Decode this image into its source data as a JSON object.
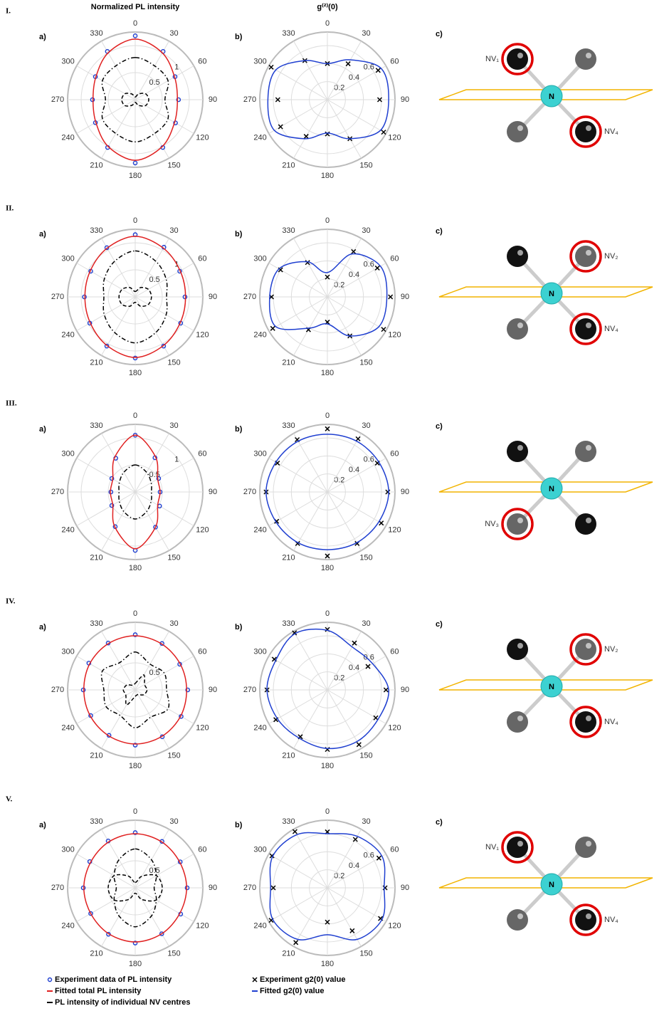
{
  "headers": [
    "Normalized PL intensity",
    "g⁽²⁾(0)"
  ],
  "rows": [
    {
      "numeral": "I.",
      "diagram": {
        "panel_label": "c)",
        "center_label": "N",
        "highlighted": [
          {
            "label": "NV₁",
            "site": "upper-left"
          },
          {
            "label": "NV₄",
            "site": "lower-right"
          }
        ]
      }
    },
    {
      "numeral": "II.",
      "diagram": {
        "panel_label": "c)",
        "center_label": "N",
        "highlighted": [
          {
            "label": "NV₂",
            "site": "upper-right"
          },
          {
            "label": "NV₄",
            "site": "lower-right"
          }
        ]
      }
    },
    {
      "numeral": "III.",
      "diagram": {
        "panel_label": "c)",
        "center_label": "N",
        "highlighted": [
          {
            "label": "NV₃",
            "site": "lower-left"
          }
        ]
      }
    },
    {
      "numeral": "IV.",
      "diagram": {
        "panel_label": "c)",
        "center_label": "N",
        "highlighted": [
          {
            "label": "NV₂",
            "site": "upper-right"
          },
          {
            "label": "NV₄",
            "site": "lower-right"
          }
        ]
      }
    },
    {
      "numeral": "V.",
      "diagram": {
        "panel_label": "c)",
        "center_label": "N",
        "highlighted": [
          {
            "label": "NV₁",
            "site": "upper-left"
          },
          {
            "label": "NV₄",
            "site": "lower-right"
          }
        ]
      }
    }
  ],
  "legends": {
    "a": [
      {
        "label": "Experiment data of PL intensity",
        "symbol": "circle",
        "color": "#1f3fd0"
      },
      {
        "label": "Fitted total PL intensity",
        "symbol": "line",
        "color": "#e02020"
      },
      {
        "label": "PL intensity of individual NV centres",
        "symbol": "line",
        "color": "#000000"
      }
    ],
    "b": [
      {
        "label": "Experiment g2(0) value",
        "symbol": "cross",
        "color": "#000000"
      },
      {
        "label": "Fitted g2(0) value",
        "symbol": "line",
        "color": "#1f3fd0"
      }
    ]
  },
  "chart_data": [
    {
      "type": "polar",
      "panel_label": "a)",
      "theta": [
        0,
        30,
        60,
        90,
        120,
        150,
        180,
        210,
        240,
        270,
        300,
        330
      ],
      "rlim": [
        0,
        1.25
      ],
      "rticks": [
        0.5,
        1
      ],
      "thetaticks": [
        0,
        30,
        60,
        90,
        120,
        150,
        180,
        210,
        240,
        270,
        300,
        330
      ],
      "series": [
        {
          "style": "markers",
          "color": "#1f3fd0",
          "values": [
            1.18,
            1.03,
            0.85,
            0.8,
            0.86,
            1.02,
            1.17,
            1.02,
            0.85,
            0.79,
            0.85,
            1.03
          ]
        },
        {
          "style": "solid",
          "color": "#e02020",
          "values": [
            1.12,
            1.0,
            0.84,
            0.78,
            0.84,
            1.0,
            1.12,
            1.0,
            0.84,
            0.78,
            0.84,
            1.0
          ]
        },
        {
          "style": "dashdot",
          "color": "#000000",
          "values": [
            0.78,
            0.72,
            0.7,
            0.55,
            0.7,
            0.72,
            0.78,
            0.72,
            0.7,
            0.55,
            0.7,
            0.72
          ]
        },
        {
          "style": "dashed",
          "color": "#000000",
          "values": [
            0.05,
            0.12,
            0.22,
            0.25,
            0.22,
            0.12,
            0.05,
            0.12,
            0.22,
            0.25,
            0.22,
            0.12
          ]
        }
      ]
    },
    {
      "type": "polar",
      "panel_label": "b)",
      "theta": [
        0,
        30,
        60,
        90,
        120,
        150,
        180,
        210,
        240,
        270,
        300,
        330
      ],
      "rlim": [
        0,
        0.75
      ],
      "rticks": [
        0.2,
        0.4,
        0.6
      ],
      "thetaticks": [
        0,
        30,
        60,
        90,
        120,
        150,
        180,
        210,
        240,
        270,
        300,
        330
      ],
      "series": [
        {
          "style": "crosses",
          "color": "#000000",
          "values": [
            0.4,
            0.46,
            0.65,
            0.58,
            0.72,
            0.5,
            0.38,
            0.47,
            0.6,
            0.55,
            0.72,
            0.5
          ]
        },
        {
          "style": "solid",
          "color": "#1f3fd0",
          "values": [
            0.4,
            0.51,
            0.69,
            0.68,
            0.68,
            0.5,
            0.37,
            0.5,
            0.68,
            0.66,
            0.66,
            0.5
          ]
        }
      ]
    },
    {
      "type": "polar",
      "panel_label": "a)",
      "theta": [
        0,
        30,
        60,
        90,
        120,
        150,
        180,
        210,
        240,
        270,
        300,
        330
      ],
      "rlim": [
        0,
        1.25
      ],
      "rticks": [
        0.5,
        1
      ],
      "thetaticks": [
        0,
        30,
        60,
        90,
        120,
        150,
        180,
        210,
        240,
        270,
        300,
        330
      ],
      "series": [
        {
          "style": "markers",
          "color": "#1f3fd0",
          "values": [
            1.15,
            1.06,
            0.95,
            0.92,
            0.97,
            1.05,
            1.13,
            1.05,
            0.97,
            0.94,
            0.95,
            1.05
          ]
        },
        {
          "style": "solid",
          "color": "#e02020",
          "values": [
            1.12,
            1.04,
            0.96,
            0.93,
            0.96,
            1.04,
            1.12,
            1.04,
            0.96,
            0.93,
            0.96,
            1.04
          ]
        },
        {
          "style": "dashdot",
          "color": "#000000",
          "values": [
            0.85,
            0.76,
            0.66,
            0.58,
            0.66,
            0.76,
            0.85,
            0.76,
            0.66,
            0.58,
            0.66,
            0.76
          ]
        },
        {
          "style": "dashed",
          "color": "#000000",
          "values": [
            0.1,
            0.2,
            0.28,
            0.3,
            0.28,
            0.2,
            0.1,
            0.2,
            0.28,
            0.3,
            0.28,
            0.2
          ]
        }
      ]
    },
    {
      "type": "polar",
      "panel_label": "b)",
      "theta": [
        0,
        30,
        60,
        90,
        120,
        150,
        180,
        210,
        240,
        270,
        300,
        330
      ],
      "rlim": [
        0,
        0.75
      ],
      "rticks": [
        0.2,
        0.4,
        0.6
      ],
      "thetaticks": [
        0,
        30,
        60,
        90,
        120,
        150,
        180,
        210,
        240,
        270,
        300,
        330
      ],
      "series": [
        {
          "style": "crosses",
          "color": "#000000",
          "values": [
            0.22,
            0.58,
            0.64,
            0.7,
            0.72,
            0.5,
            0.28,
            0.42,
            0.7,
            0.62,
            0.6,
            0.44
          ]
        },
        {
          "style": "solid",
          "color": "#1f3fd0",
          "values": [
            0.27,
            0.55,
            0.68,
            0.66,
            0.66,
            0.5,
            0.3,
            0.4,
            0.66,
            0.64,
            0.62,
            0.45
          ]
        }
      ]
    },
    {
      "type": "polar",
      "panel_label": "a)",
      "theta": [
        0,
        30,
        60,
        90,
        120,
        150,
        180,
        210,
        240,
        270,
        300,
        330
      ],
      "rlim": [
        0,
        1.25
      ],
      "rticks": [
        0.5,
        1
      ],
      "thetaticks": [
        0,
        30,
        60,
        90,
        120,
        150,
        180,
        210,
        240,
        270,
        300,
        330
      ],
      "series": [
        {
          "style": "markers",
          "color": "#1f3fd0",
          "values": [
            1.05,
            0.73,
            0.5,
            0.46,
            0.52,
            0.75,
            1.08,
            0.74,
            0.5,
            0.45,
            0.5,
            0.72
          ]
        },
        {
          "style": "solid",
          "color": "#e02020",
          "values": [
            1.05,
            0.75,
            0.48,
            0.46,
            0.48,
            0.75,
            1.05,
            0.75,
            0.48,
            0.46,
            0.48,
            0.75
          ]
        },
        {
          "style": "dashdot",
          "color": "#000000",
          "values": [
            0.5,
            0.42,
            0.34,
            0.3,
            0.34,
            0.42,
            0.5,
            0.42,
            0.34,
            0.3,
            0.34,
            0.42
          ]
        }
      ]
    },
    {
      "type": "polar",
      "panel_label": "b)",
      "theta": [
        0,
        30,
        60,
        90,
        120,
        150,
        180,
        210,
        240,
        270,
        300,
        330
      ],
      "rlim": [
        0,
        0.75
      ],
      "rticks": [
        0.2,
        0.4,
        0.6
      ],
      "thetaticks": [
        0,
        30,
        60,
        90,
        120,
        150,
        180,
        210,
        240,
        270,
        300,
        330
      ],
      "series": [
        {
          "style": "crosses",
          "color": "#000000",
          "values": [
            0.7,
            0.68,
            0.64,
            0.67,
            0.69,
            0.66,
            0.71,
            0.66,
            0.65,
            0.68,
            0.64,
            0.67
          ]
        },
        {
          "style": "solid",
          "color": "#1f3fd0",
          "values": [
            0.64,
            0.65,
            0.66,
            0.68,
            0.66,
            0.65,
            0.64,
            0.65,
            0.66,
            0.68,
            0.66,
            0.65
          ]
        }
      ]
    },
    {
      "type": "polar",
      "panel_label": "a)",
      "theta": [
        0,
        30,
        60,
        90,
        120,
        150,
        180,
        210,
        240,
        270,
        300,
        330
      ],
      "rlim": [
        0,
        1.25
      ],
      "rticks": [
        0.5
      ],
      "thetaticks": [
        0,
        30,
        60,
        90,
        120,
        150,
        180,
        210,
        240,
        270,
        300,
        330
      ],
      "series": [
        {
          "style": "markers",
          "color": "#1f3fd0",
          "values": [
            1.02,
            0.99,
            0.95,
            0.97,
            0.98,
            1.0,
            1.02,
            0.97,
            0.95,
            0.96,
            0.99,
            1.0
          ]
        },
        {
          "style": "solid",
          "color": "#e02020",
          "values": [
            1.0,
            0.98,
            0.96,
            0.95,
            0.97,
            0.99,
            1.0,
            0.98,
            0.96,
            0.95,
            0.97,
            0.99
          ]
        },
        {
          "style": "dashdot",
          "color": "#000000",
          "values": [
            0.7,
            0.55,
            0.62,
            0.58,
            0.7,
            0.58,
            0.7,
            0.55,
            0.62,
            0.58,
            0.7,
            0.58
          ]
        },
        {
          "style": "dashed",
          "color": "#000000",
          "values": [
            0.12,
            0.32,
            0.2,
            0.22,
            0.18,
            0.1,
            0.12,
            0.32,
            0.2,
            0.22,
            0.18,
            0.1
          ]
        }
      ]
    },
    {
      "type": "polar",
      "panel_label": "b)",
      "theta": [
        0,
        30,
        60,
        90,
        120,
        150,
        180,
        210,
        240,
        270,
        300,
        330
      ],
      "rlim": [
        0,
        0.75
      ],
      "rticks": [
        0.2,
        0.4,
        0.6
      ],
      "thetaticks": [
        0,
        30,
        60,
        90,
        120,
        150,
        180,
        210,
        240,
        270,
        300,
        330
      ],
      "series": [
        {
          "style": "crosses",
          "color": "#000000",
          "values": [
            0.67,
            0.6,
            0.52,
            0.65,
            0.62,
            0.7,
            0.66,
            0.6,
            0.66,
            0.67,
            0.68,
            0.73
          ]
        },
        {
          "style": "solid",
          "color": "#1f3fd0",
          "values": [
            0.66,
            0.55,
            0.58,
            0.68,
            0.65,
            0.66,
            0.65,
            0.62,
            0.64,
            0.67,
            0.66,
            0.72
          ]
        }
      ]
    },
    {
      "type": "polar",
      "panel_label": "a)",
      "theta": [
        0,
        30,
        60,
        90,
        120,
        150,
        180,
        210,
        240,
        270,
        300,
        330
      ],
      "rlim": [
        0,
        1.25
      ],
      "rticks": [
        0.5
      ],
      "thetaticks": [
        0,
        30,
        60,
        90,
        120,
        150,
        180,
        210,
        240,
        270,
        300,
        330
      ],
      "series": [
        {
          "style": "markers",
          "color": "#1f3fd0",
          "values": [
            1.02,
            0.99,
            0.96,
            0.96,
            0.97,
            0.98,
            1.02,
            0.99,
            0.95,
            0.96,
            0.97,
            1.0
          ]
        },
        {
          "style": "solid",
          "color": "#e02020",
          "values": [
            1.0,
            0.98,
            0.95,
            0.95,
            0.95,
            0.98,
            1.0,
            0.98,
            0.95,
            0.95,
            0.95,
            0.98
          ]
        },
        {
          "style": "dashdot",
          "color": "#000000",
          "values": [
            0.72,
            0.6,
            0.45,
            0.35,
            0.45,
            0.6,
            0.72,
            0.6,
            0.45,
            0.35,
            0.45,
            0.6
          ]
        },
        {
          "style": "dashed",
          "color": "#000000",
          "values": [
            0.1,
            0.25,
            0.45,
            0.5,
            0.45,
            0.25,
            0.1,
            0.25,
            0.45,
            0.5,
            0.45,
            0.25
          ]
        }
      ]
    },
    {
      "type": "polar",
      "panel_label": "b)",
      "theta": [
        0,
        30,
        60,
        90,
        120,
        150,
        180,
        210,
        240,
        270,
        300,
        330
      ],
      "rlim": [
        0,
        0.75
      ],
      "rticks": [
        0.2,
        0.4,
        0.6
      ],
      "thetaticks": [
        0,
        30,
        60,
        90,
        120,
        150,
        180,
        210,
        240,
        270,
        300,
        330
      ],
      "series": [
        {
          "style": "crosses",
          "color": "#000000",
          "values": [
            0.62,
            0.62,
            0.66,
            0.64,
            0.68,
            0.55,
            0.38,
            0.7,
            0.72,
            0.6,
            0.71,
            0.72
          ]
        },
        {
          "style": "solid",
          "color": "#1f3fd0",
          "values": [
            0.6,
            0.66,
            0.7,
            0.63,
            0.7,
            0.66,
            0.52,
            0.66,
            0.7,
            0.63,
            0.7,
            0.68
          ]
        }
      ]
    }
  ]
}
